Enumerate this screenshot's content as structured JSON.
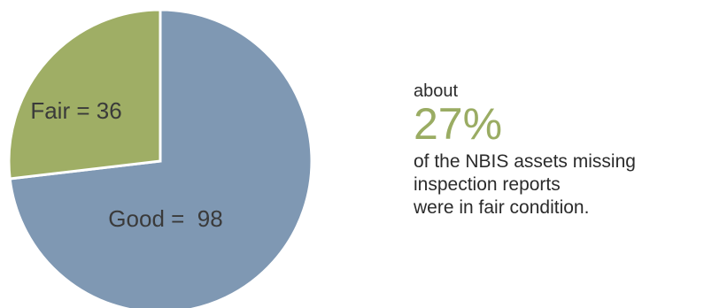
{
  "chart_data": {
    "type": "pie",
    "slices": [
      {
        "label": "Good",
        "value": 98,
        "label_text": "Good =  98",
        "color": "#7f98b3"
      },
      {
        "label": "Fair",
        "value": 36,
        "label_text": "Fair = 36",
        "color": "#9fae65"
      }
    ]
  },
  "callout": {
    "prefix": "about",
    "percent": "27%",
    "text": "of the NBIS assets missing\ninspection reports\nwere in fair condition.",
    "percent_color": "#9aac63"
  }
}
